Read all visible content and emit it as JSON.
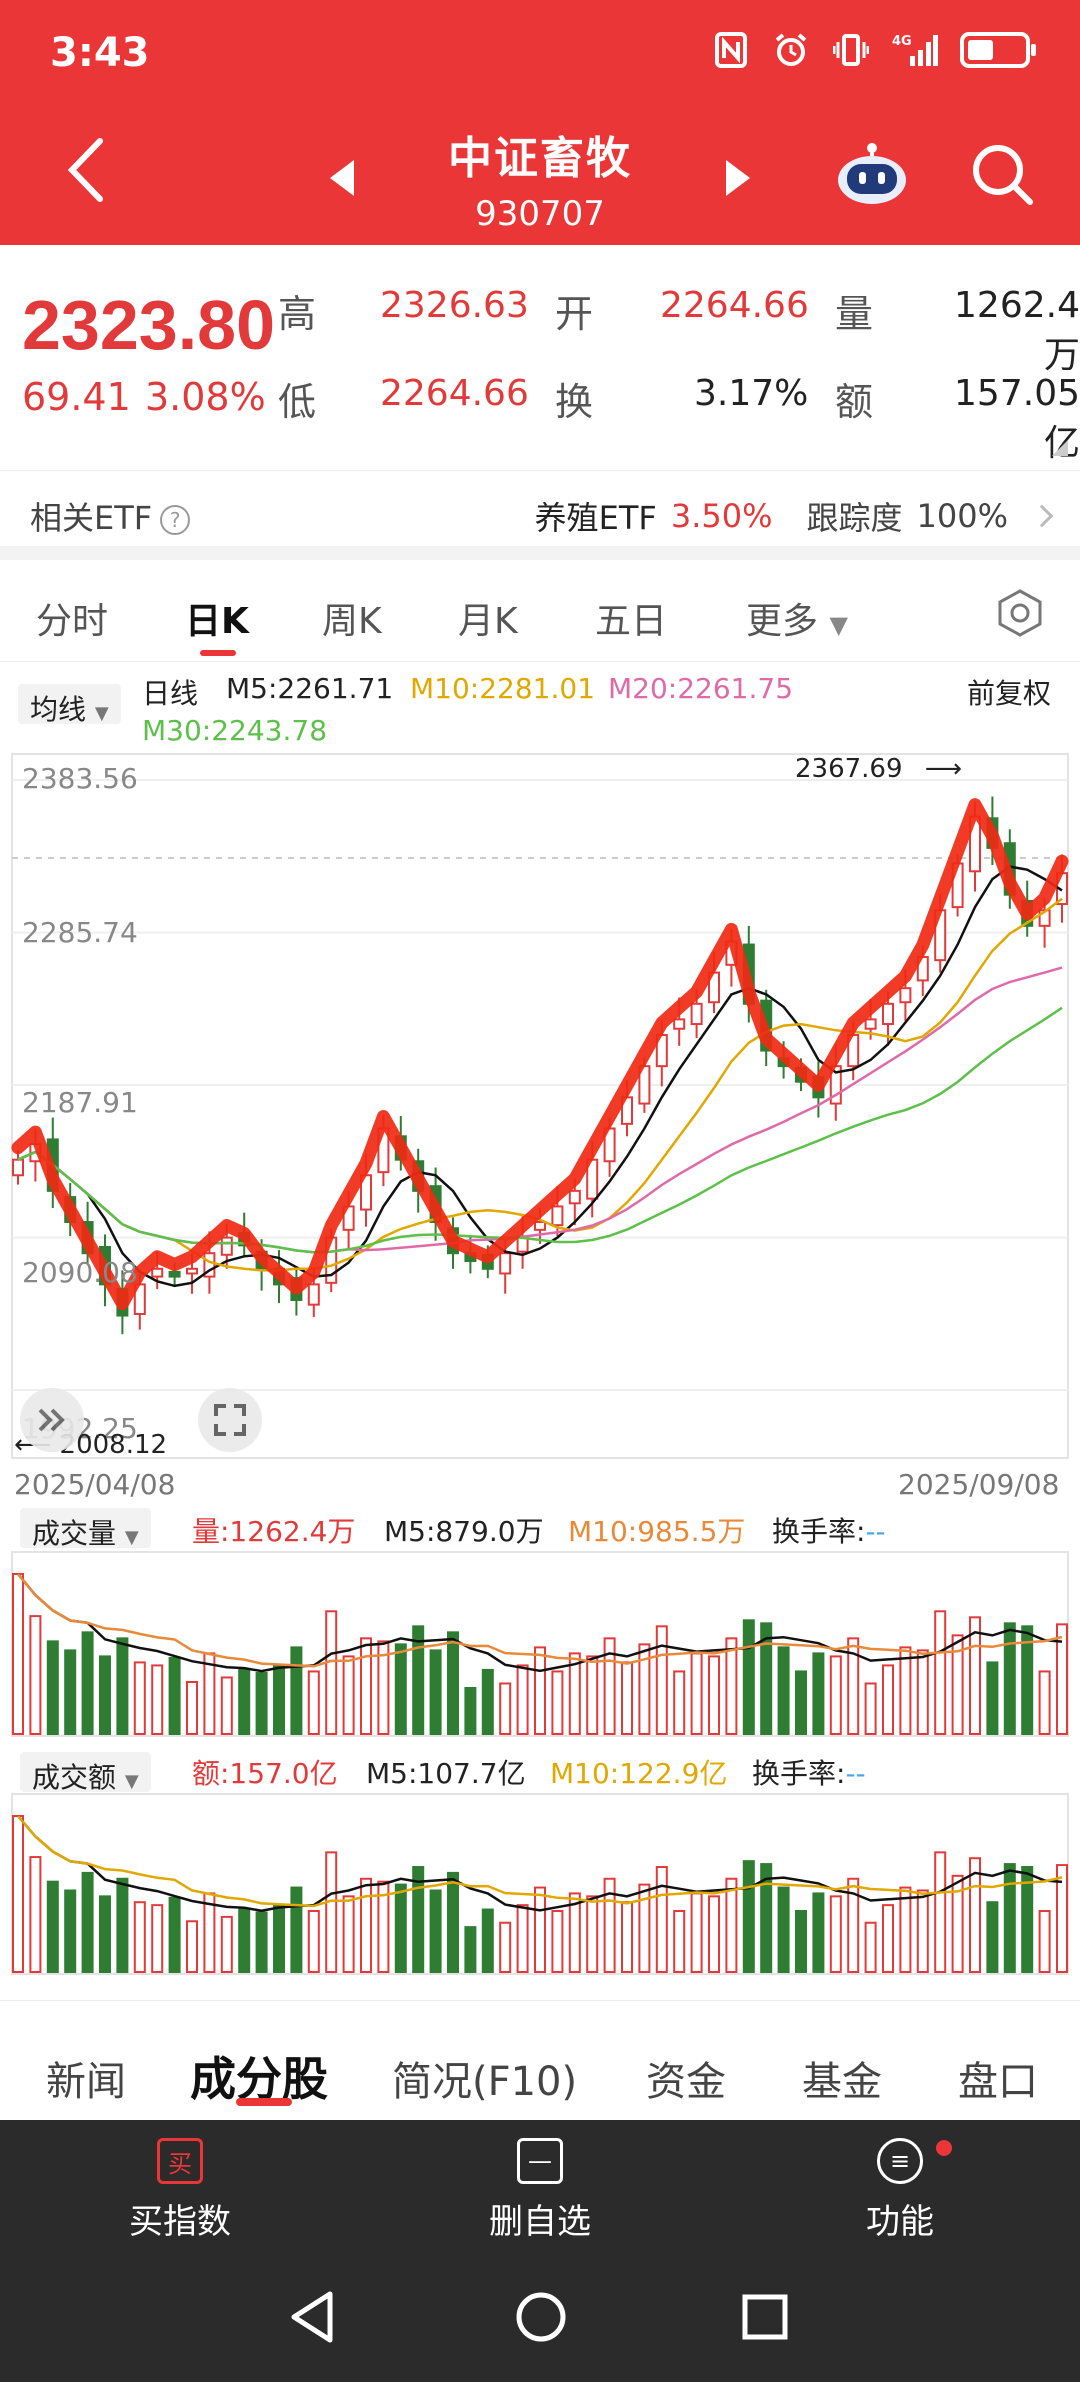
{
  "status_bar": {
    "time": "3:43",
    "icons": [
      "nfc-icon",
      "alarm-icon",
      "vibrate-icon",
      "4g-signal-icon",
      "battery-icon"
    ],
    "net_label": "4G"
  },
  "header": {
    "title": "中证畜牧",
    "code": "930707"
  },
  "quote": {
    "price": "2323.80",
    "change": "69.41",
    "change_pct": "3.08%",
    "high_label": "高",
    "high": "2326.63",
    "open_label": "开",
    "open": "2264.66",
    "volume_label": "量",
    "volume": "1262.4万",
    "low_label": "低",
    "low": "2264.66",
    "turnover_label": "换",
    "turnover": "3.17%",
    "amount_label": "额",
    "amount": "157.05亿"
  },
  "etf": {
    "label": "相关ETF",
    "name": "养殖ETF",
    "pct": "3.50%",
    "track_label": "跟踪度",
    "track": "100%"
  },
  "kline_tabs": [
    "分时",
    "日K",
    "周K",
    "月K",
    "五日",
    "更多"
  ],
  "active_kline_tab": "日K",
  "chart_legend": {
    "dropdown": "均线",
    "period": "日线",
    "m5": "M5:2261.71",
    "m10": "M10:2281.01",
    "m20": "M20:2261.75",
    "m30": "M30:2243.78",
    "adjust": "前复权"
  },
  "y_ticks": [
    "2383.56",
    "2285.74",
    "2187.91",
    "2090.08",
    "1992.25"
  ],
  "annotations": {
    "high": "2367.69",
    "low": "2008.12"
  },
  "date_range": {
    "start": "2025/04/08",
    "end": "2025/09/08"
  },
  "volume_panel": {
    "dropdown": "成交量",
    "value": "量:1262.4万",
    "m5": "M5:879.0万",
    "m10": "M10:985.5万",
    "turnover": "换手率:",
    "turnover_value": "--"
  },
  "amount_panel": {
    "dropdown": "成交额",
    "value": "额:157.0亿",
    "m5": "M5:107.7亿",
    "m10": "M10:122.9亿",
    "turnover": "换手率:",
    "turnover_value": "--"
  },
  "bottom_tabs": [
    "新闻",
    "成分股",
    "简况(F10)",
    "资金",
    "基金",
    "盘口"
  ],
  "active_bottom_tab": "成分股",
  "actions": {
    "buy": "买指数",
    "buy_icon": "买",
    "remove": "删自选",
    "more": "功能"
  },
  "colors": {
    "up": "#e23a3a",
    "down": "#2e7d32",
    "m5": "#111111",
    "m10": "#e0a800",
    "m20": "#e06aa8",
    "m30": "#5cc04a",
    "brand": "#ea3636"
  },
  "chart_data": {
    "type": "candlestick",
    "x_start": "2025/04/08",
    "x_end": "2025/09/08",
    "ylim": [
      1992.25,
      2383.56
    ],
    "y_ticks": [
      2383.56,
      2285.74,
      2187.91,
      2090.08,
      1992.25
    ],
    "high": 2367.69,
    "low": 2008.12,
    "last_close": 2323.8,
    "close_path": [
      2140,
      2150,
      2120,
      2100,
      2080,
      2060,
      2040,
      2060,
      2070,
      2065,
      2070,
      2080,
      2090,
      2085,
      2070,
      2060,
      2050,
      2060,
      2090,
      2110,
      2130,
      2160,
      2140,
      2120,
      2100,
      2080,
      2075,
      2070,
      2080,
      2090,
      2100,
      2110,
      2120,
      2140,
      2160,
      2180,
      2200,
      2220,
      2230,
      2240,
      2260,
      2280,
      2240,
      2210,
      2200,
      2190,
      2180,
      2200,
      2220,
      2230,
      2240,
      2250,
      2270,
      2300,
      2330,
      2360,
      2340,
      2310,
      2290,
      2300,
      2323.8
    ],
    "ma": {
      "M5": 2261.71,
      "M10": 2281.01,
      "M20": 2261.75,
      "M30": 2243.78
    },
    "volume_last": "1262.4万",
    "amount_last": "157.0亿"
  }
}
